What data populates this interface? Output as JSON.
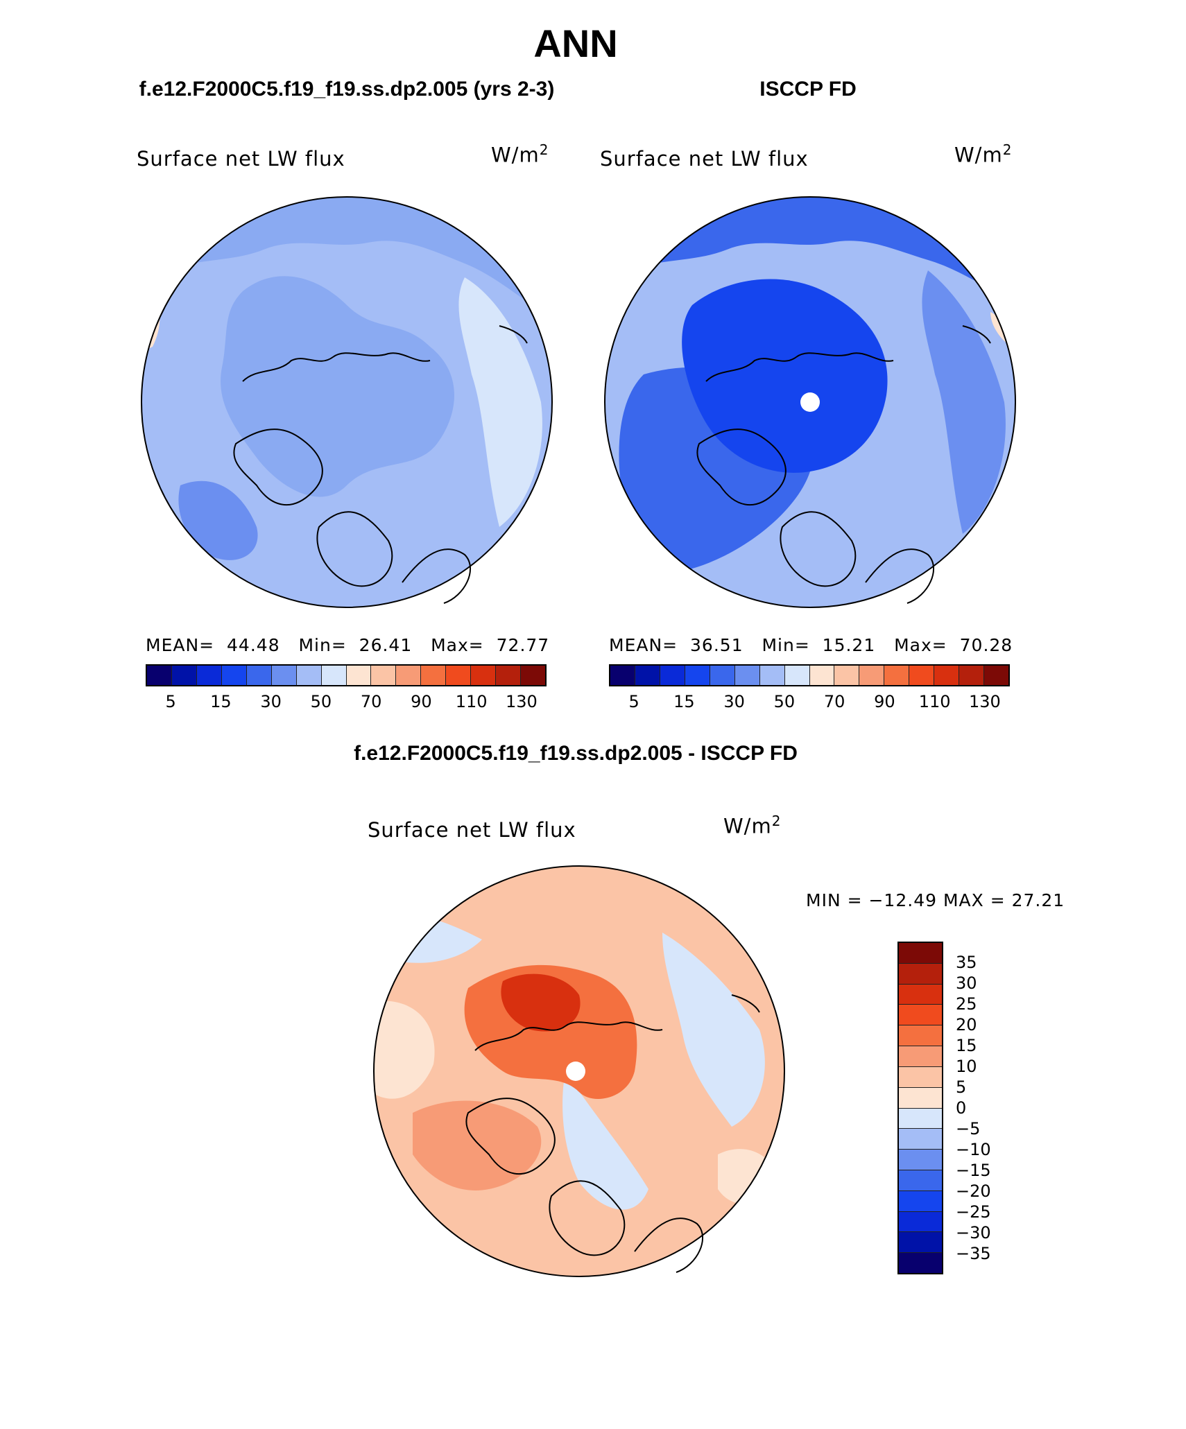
{
  "header": {
    "title": "ANN",
    "left_case": "f.e12.F2000C5.f19_f19.ss.dp2.005 (yrs 2-3)",
    "right_case": "ISCCP FD",
    "diff_title": "f.e12.F2000C5.f19_f19.ss.dp2.005 - ISCCP FD"
  },
  "panels": [
    {
      "title": "Surface net LW flux",
      "units": "W/m",
      "units_sup": "2",
      "mean_label": "MEAN=",
      "mean": "44.48",
      "min_label": "Min=",
      "min": "26.41",
      "max_label": "Max=",
      "max": "72.77"
    },
    {
      "title": "Surface net LW flux",
      "units": "W/m",
      "units_sup": "2",
      "mean_label": "MEAN=",
      "mean": "36.51",
      "min_label": "Min=",
      "min": "15.21",
      "max_label": "Max=",
      "max": "70.28"
    },
    {
      "title": "Surface net LW flux",
      "units": "W/m",
      "units_sup": "2",
      "minmax": "MIN = −12.49 MAX =  27.21"
    }
  ],
  "colorbar_abs": {
    "colors": [
      "#08006e",
      "#0012a8",
      "#0a2ad8",
      "#1545ee",
      "#3a67ec",
      "#6b8ff0",
      "#a4bdf6",
      "#d7e6fb",
      "#fde4d2",
      "#fbc4a6",
      "#f79b76",
      "#f4703f",
      "#f04b1e",
      "#d8300f",
      "#b4200c",
      "#7c0a06"
    ],
    "ticks": [
      "5",
      "15",
      "30",
      "50",
      "70",
      "90",
      "110",
      "130"
    ]
  },
  "colorbar_diff": {
    "colors": [
      "#7c0a06",
      "#b4200c",
      "#d8300f",
      "#f04b1e",
      "#f4703f",
      "#f79b76",
      "#fbc4a6",
      "#fde4d2",
      "#d7e6fb",
      "#a4bdf6",
      "#6b8ff0",
      "#3a67ec",
      "#1545ee",
      "#0a2ad8",
      "#0012a8",
      "#08006e"
    ],
    "ticks": [
      "35",
      "30",
      "25",
      "20",
      "15",
      "10",
      "5",
      "0",
      "−5",
      "−10",
      "−15",
      "−20",
      "−25",
      "−30",
      "−35"
    ]
  }
}
